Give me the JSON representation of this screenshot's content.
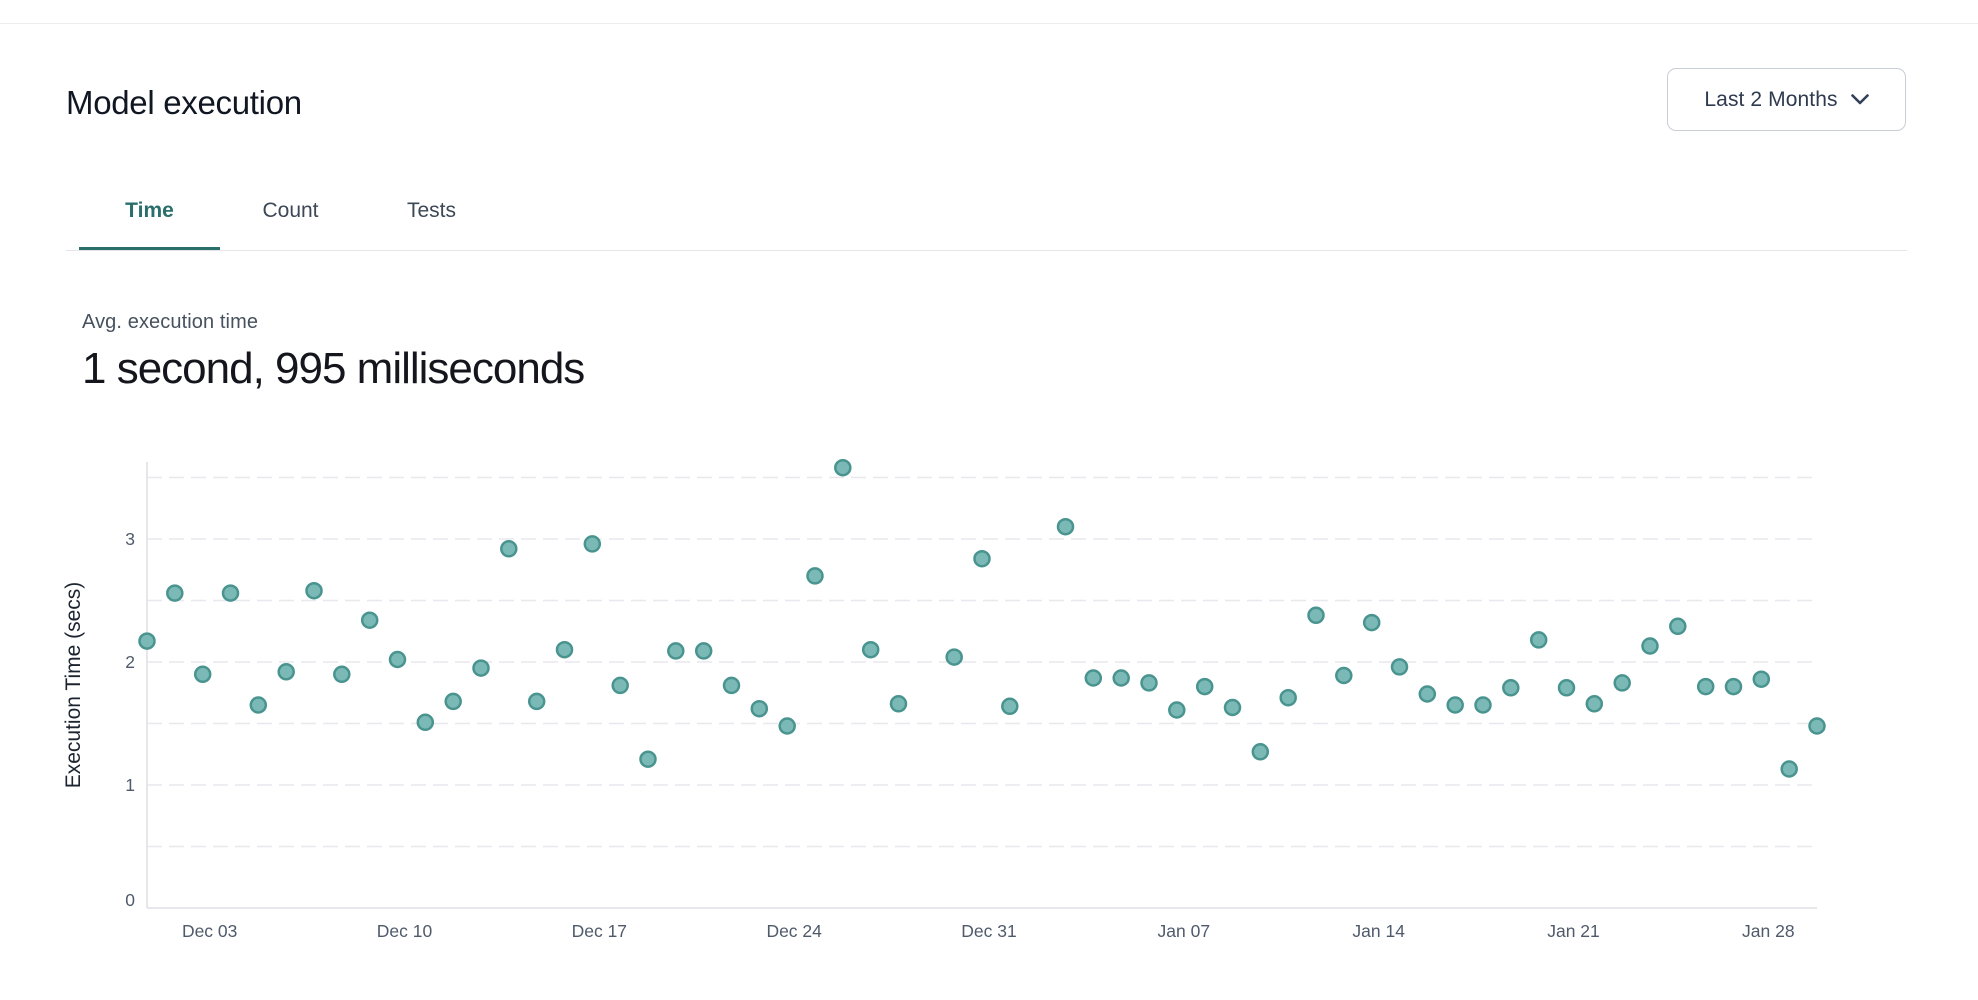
{
  "header": {
    "title": "Model execution",
    "range_selector": {
      "label": "Last 2 Months",
      "icon": "chevron-down-icon"
    }
  },
  "tabs": [
    {
      "label": "Time",
      "active": true
    },
    {
      "label": "Count",
      "active": false
    },
    {
      "label": "Tests",
      "active": false
    }
  ],
  "metric": {
    "label": "Avg. execution time",
    "value": "1 second, 995 milliseconds"
  },
  "chart_data": {
    "type": "scatter",
    "title": "",
    "xlabel": "",
    "ylabel": "Execution Time (secs)",
    "ylim": [
      0,
      3.64
    ],
    "y_ticks": [
      0,
      1,
      2,
      3
    ],
    "gridline_step": 0.5,
    "grid": "horizontal-dashed",
    "legend": "none",
    "x_range_days": 60,
    "x_ticks": [
      {
        "label": "Dec 03",
        "day": 2
      },
      {
        "label": "Dec 10",
        "day": 9
      },
      {
        "label": "Dec 17",
        "day": 16
      },
      {
        "label": "Dec 24",
        "day": 23
      },
      {
        "label": "Dec 31",
        "day": 30
      },
      {
        "label": "Jan 07",
        "day": 37
      },
      {
        "label": "Jan 14",
        "day": 44
      },
      {
        "label": "Jan 21",
        "day": 51
      },
      {
        "label": "Jan 28",
        "day": 58
      }
    ],
    "points": [
      {
        "date": "Dec 01",
        "day": 0,
        "secs": 2.17
      },
      {
        "date": "Dec 02",
        "day": 1,
        "secs": 2.56
      },
      {
        "date": "Dec 03",
        "day": 2,
        "secs": 1.9
      },
      {
        "date": "Dec 04",
        "day": 3,
        "secs": 2.56
      },
      {
        "date": "Dec 05",
        "day": 4,
        "secs": 1.65
      },
      {
        "date": "Dec 06",
        "day": 5,
        "secs": 1.92
      },
      {
        "date": "Dec 07",
        "day": 6,
        "secs": 2.58
      },
      {
        "date": "Dec 08",
        "day": 7,
        "secs": 1.9
      },
      {
        "date": "Dec 09",
        "day": 8,
        "secs": 2.34
      },
      {
        "date": "Dec 10",
        "day": 9,
        "secs": 2.02
      },
      {
        "date": "Dec 11",
        "day": 10,
        "secs": 1.51
      },
      {
        "date": "Dec 12",
        "day": 11,
        "secs": 1.68
      },
      {
        "date": "Dec 13",
        "day": 12,
        "secs": 1.95
      },
      {
        "date": "Dec 14",
        "day": 13,
        "secs": 2.92
      },
      {
        "date": "Dec 15",
        "day": 14,
        "secs": 1.68
      },
      {
        "date": "Dec 16",
        "day": 15,
        "secs": 2.1
      },
      {
        "date": "Dec 17",
        "day": 16,
        "secs": 2.96
      },
      {
        "date": "Dec 18",
        "day": 17,
        "secs": 1.81
      },
      {
        "date": "Dec 19",
        "day": 18,
        "secs": 1.21
      },
      {
        "date": "Dec 20",
        "day": 19,
        "secs": 2.09
      },
      {
        "date": "Dec 21",
        "day": 20,
        "secs": 2.09
      },
      {
        "date": "Dec 22",
        "day": 21,
        "secs": 1.81
      },
      {
        "date": "Dec 23",
        "day": 22,
        "secs": 1.62
      },
      {
        "date": "Dec 24",
        "day": 23,
        "secs": 1.48
      },
      {
        "date": "Dec 25",
        "day": 24,
        "secs": 2.7
      },
      {
        "date": "Dec 26",
        "day": 25,
        "secs": 3.58
      },
      {
        "date": "Dec 27",
        "day": 26,
        "secs": 2.1
      },
      {
        "date": "Dec 28",
        "day": 27,
        "secs": 1.66
      },
      {
        "date": "Dec 30",
        "day": 29,
        "secs": 2.04
      },
      {
        "date": "Dec 31",
        "day": 30,
        "secs": 2.84
      },
      {
        "date": "Jan 01",
        "day": 31,
        "secs": 1.64
      },
      {
        "date": "Jan 03",
        "day": 33,
        "secs": 3.1
      },
      {
        "date": "Jan 04",
        "day": 34,
        "secs": 1.87
      },
      {
        "date": "Jan 05",
        "day": 35,
        "secs": 1.87
      },
      {
        "date": "Jan 06",
        "day": 36,
        "secs": 1.83
      },
      {
        "date": "Jan 07",
        "day": 37,
        "secs": 1.61
      },
      {
        "date": "Jan 08",
        "day": 38,
        "secs": 1.8
      },
      {
        "date": "Jan 09",
        "day": 39,
        "secs": 1.63
      },
      {
        "date": "Jan 10",
        "day": 40,
        "secs": 1.27
      },
      {
        "date": "Jan 11",
        "day": 41,
        "secs": 1.71
      },
      {
        "date": "Jan 12",
        "day": 42,
        "secs": 2.38
      },
      {
        "date": "Jan 13",
        "day": 43,
        "secs": 1.89
      },
      {
        "date": "Jan 14",
        "day": 44,
        "secs": 2.32
      },
      {
        "date": "Jan 15",
        "day": 45,
        "secs": 1.96
      },
      {
        "date": "Jan 16",
        "day": 46,
        "secs": 1.74
      },
      {
        "date": "Jan 17",
        "day": 47,
        "secs": 1.65
      },
      {
        "date": "Jan 18",
        "day": 48,
        "secs": 1.65
      },
      {
        "date": "Jan 19",
        "day": 49,
        "secs": 1.79
      },
      {
        "date": "Jan 20",
        "day": 50,
        "secs": 2.18
      },
      {
        "date": "Jan 21",
        "day": 51,
        "secs": 1.79
      },
      {
        "date": "Jan 22",
        "day": 52,
        "secs": 1.66
      },
      {
        "date": "Jan 23",
        "day": 53,
        "secs": 1.83
      },
      {
        "date": "Jan 24",
        "day": 54,
        "secs": 2.13
      },
      {
        "date": "Jan 25",
        "day": 55,
        "secs": 2.29
      },
      {
        "date": "Jan 26",
        "day": 56,
        "secs": 1.8
      },
      {
        "date": "Jan 27",
        "day": 57,
        "secs": 1.8
      },
      {
        "date": "Jan 28",
        "day": 58,
        "secs": 1.86
      },
      {
        "date": "Jan 29",
        "day": 59,
        "secs": 1.13
      },
      {
        "date": "Jan 30",
        "day": 60,
        "secs": 1.48
      }
    ],
    "colors": {
      "point_fill": "#7ab9b6",
      "point_stroke": "#4a9490",
      "grid": "#e8e8ee",
      "axis": "#dfdfe6",
      "tick_text": "#4f5a6b",
      "ylabel_text": "#1c2430",
      "accent": "#2a6f6b"
    }
  }
}
